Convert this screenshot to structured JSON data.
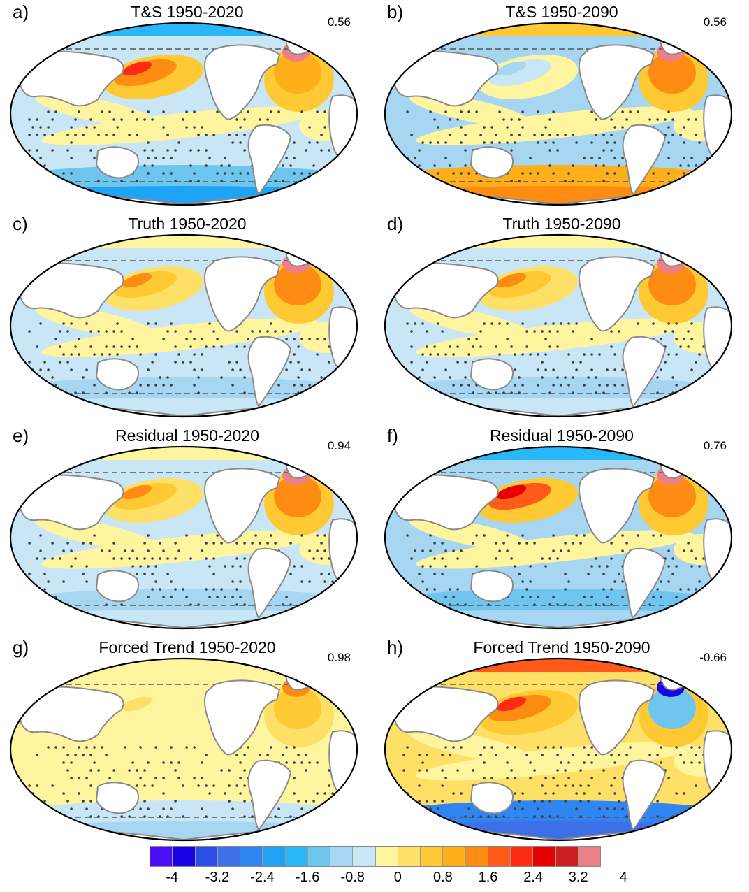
{
  "panels": [
    {
      "letter": "a)",
      "title": "T&S 1950-2020",
      "corr": "0.56",
      "theme": "ts2020"
    },
    {
      "letter": "b)",
      "title": "T&S 1950-2090",
      "corr": "0.56",
      "theme": "ts2090"
    },
    {
      "letter": "c)",
      "title": "Truth 1950-2020",
      "corr": "",
      "theme": "truth"
    },
    {
      "letter": "d)",
      "title": "Truth 1950-2090",
      "corr": "",
      "theme": "truth"
    },
    {
      "letter": "e)",
      "title": "Residual 1950-2020",
      "corr": "0.94",
      "theme": "truth"
    },
    {
      "letter": "f)",
      "title": "Residual 1950-2090",
      "corr": "0.76",
      "theme": "resid2090"
    },
    {
      "letter": "g)",
      "title": "Forced Trend 1950-2020",
      "corr": "0.98",
      "theme": "forced2020"
    },
    {
      "letter": "h)",
      "title": "Forced Trend 1950-2090",
      "corr": "-0.66",
      "theme": "forced2090"
    }
  ],
  "colorbar": {
    "colors": [
      "#4b0ff5",
      "#1a00e6",
      "#2b4ee8",
      "#3f6fe6",
      "#2f86f2",
      "#1ea3f7",
      "#28b7f7",
      "#6ec6ef",
      "#a6d6f1",
      "#c9e6f6",
      "#fff59e",
      "#ffe066",
      "#ffc933",
      "#ffaf1a",
      "#ff8c12",
      "#ff5a1a",
      "#ff2a12",
      "#e60000",
      "#cc1f1f",
      "#ef7f86"
    ],
    "labels": [
      "-4",
      "-3.2",
      "-2.4",
      "-1.6",
      "-0.8",
      "0",
      "0.8",
      "1.6",
      "2.4",
      "3.2",
      "4"
    ]
  }
}
